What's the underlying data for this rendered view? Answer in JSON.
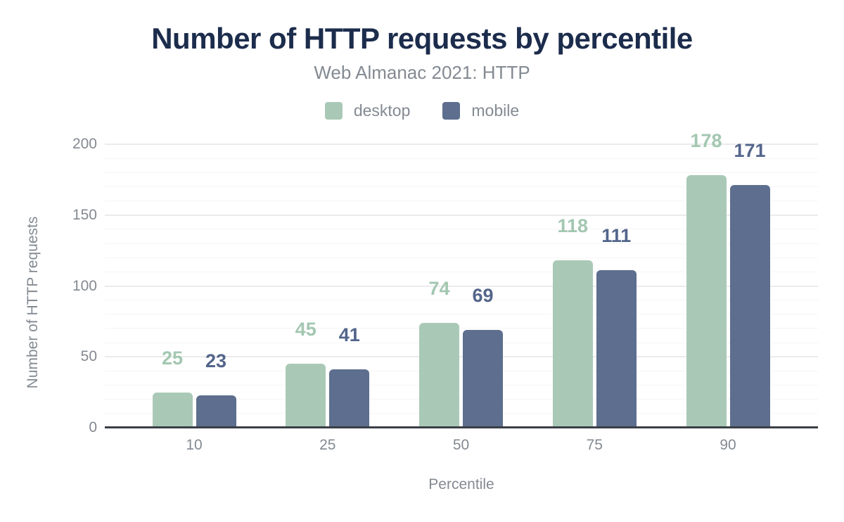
{
  "title": "Number of HTTP requests by percentile",
  "subtitle": "Web Almanac 2021: HTTP",
  "legend": [
    {
      "label": "desktop",
      "color": "#a9c9b6"
    },
    {
      "label": "mobile",
      "color": "#5d6e8e"
    }
  ],
  "chart_data": {
    "type": "bar",
    "title": "Number of HTTP requests by percentile",
    "subtitle": "Web Almanac 2021: HTTP",
    "categories": [
      "10",
      "25",
      "50",
      "75",
      "90"
    ],
    "series": [
      {
        "name": "desktop",
        "color": "#a9c9b6",
        "label_color": "#a3c7b1",
        "values": [
          25,
          45,
          74,
          118,
          178
        ]
      },
      {
        "name": "mobile",
        "color": "#5d6e8e",
        "label_color": "#53658a",
        "values": [
          23,
          41,
          69,
          111,
          171
        ]
      }
    ],
    "xlabel": "Percentile",
    "ylabel": "Number of HTTP requests",
    "ylim": [
      0,
      200
    ],
    "yticks": [
      0,
      50,
      100,
      150,
      200
    ],
    "minor_grid_step": 10,
    "major_grid_step": 50,
    "grid": true,
    "legend_position": "top",
    "value_labels": true
  },
  "colors": {
    "title": "#1c2c4c",
    "text_muted": "#838a92",
    "axis_line": "#3a3f46",
    "grid_minor": "#f5f5f7",
    "grid_major": "#ebebee",
    "background": "#ffffff"
  }
}
